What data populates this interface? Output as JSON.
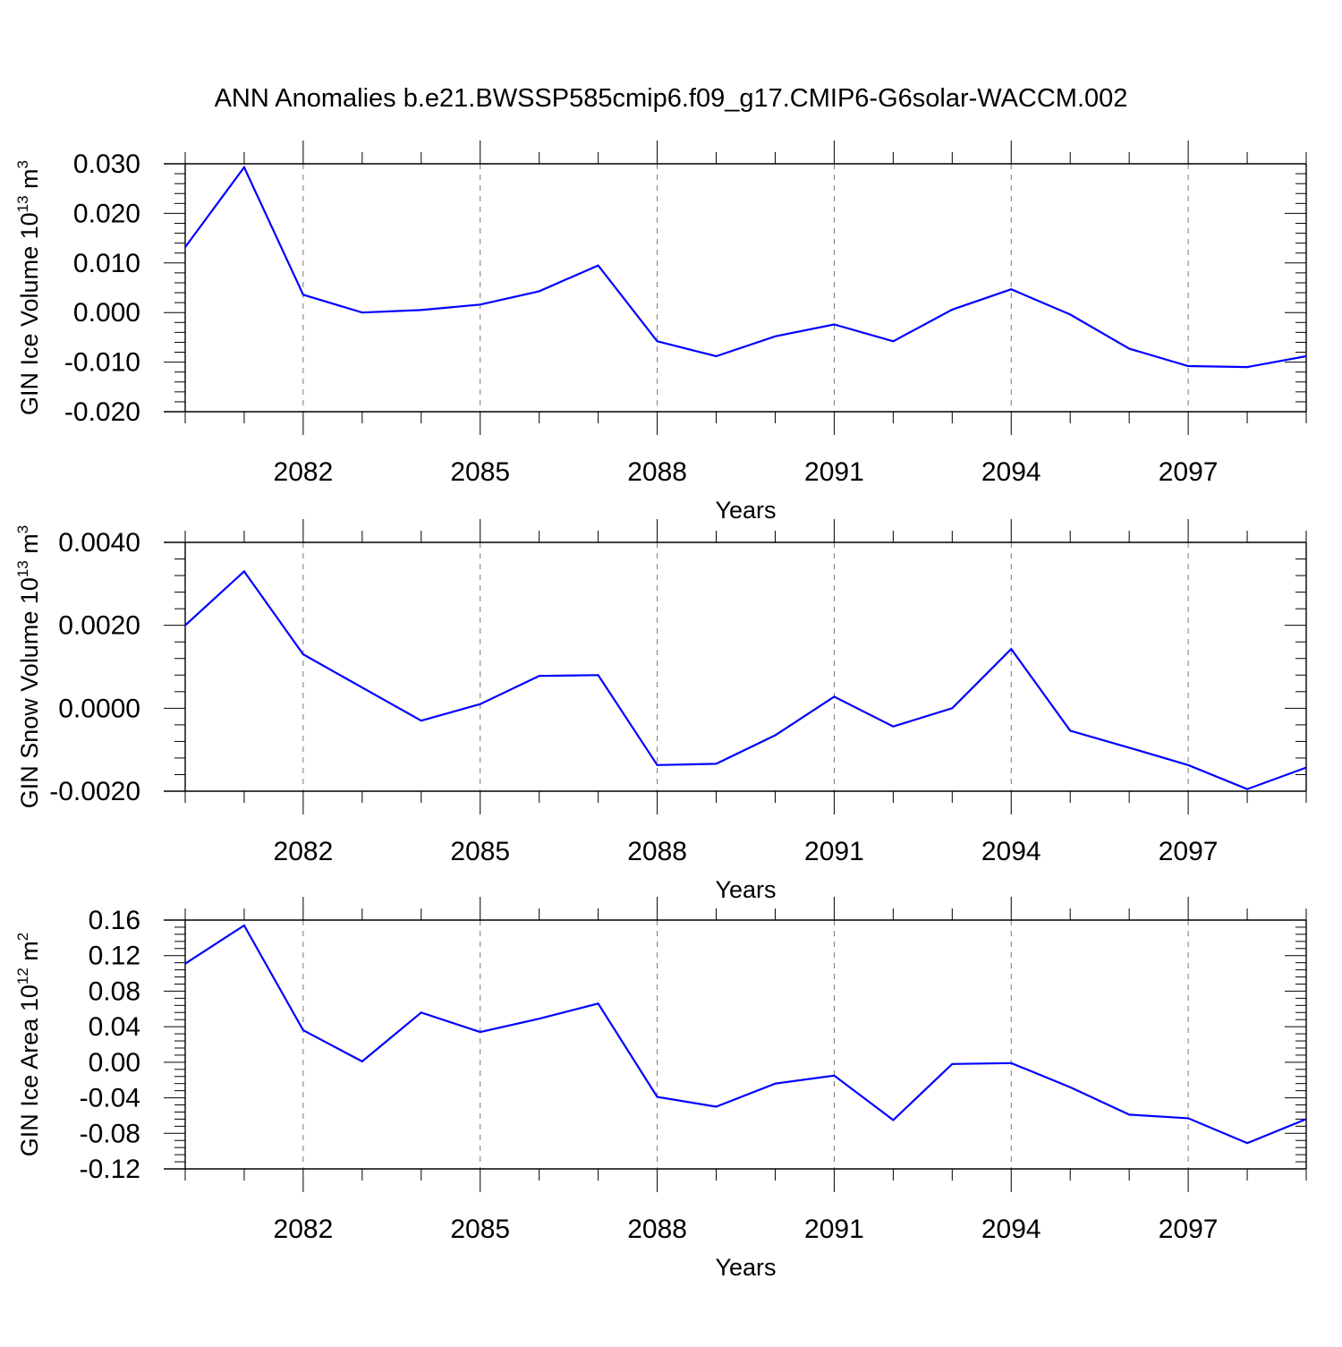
{
  "figure_title": "ANN Anomalies b.e21.BWSSP585cmip6.f09_g17.CMIP6-G6solar-WACCM.002",
  "colors": {
    "series": "#0000ff",
    "frame": "#000000",
    "grid": "#7a7a7a"
  },
  "chart_data": [
    {
      "type": "line",
      "title": "",
      "ylabel": {
        "text": "GIN Ice Volume 10",
        "exp": "13",
        "unit": " m",
        "unit_exp": "3"
      },
      "xlabel": "Years",
      "xlim": [
        2080,
        2099
      ],
      "ylim": [
        -0.02,
        0.03
      ],
      "grid": "vertical dashed at major x ticks",
      "yticks": [
        0.03,
        0.02,
        0.01,
        0.0,
        -0.01,
        -0.02
      ],
      "ytick_labels": [
        "0.030",
        "0.020",
        "0.010",
        "0.000",
        "-0.010",
        "-0.020"
      ],
      "xticks": [
        2082,
        2085,
        2088,
        2091,
        2094,
        2097
      ],
      "xtick_labels": [
        "2082",
        "2085",
        "2088",
        "2091",
        "2094",
        "2097"
      ],
      "x": [
        2080,
        2081,
        2082,
        2083,
        2084,
        2085,
        2086,
        2087,
        2088,
        2089,
        2090,
        2091,
        2092,
        2093,
        2094,
        2095,
        2096,
        2097,
        2098,
        2099
      ],
      "series": [
        {
          "values": [
            0.0132,
            0.0293,
            0.0036,
            0.0,
            0.0005,
            0.0016,
            0.0043,
            0.0095,
            -0.0058,
            -0.0088,
            -0.0048,
            -0.0024,
            -0.0058,
            0.0006,
            0.0047,
            -0.0004,
            -0.0073,
            -0.0108,
            -0.011,
            -0.0088
          ]
        }
      ]
    },
    {
      "type": "line",
      "title": "",
      "ylabel": {
        "text": "GIN Snow Volume 10",
        "exp": "13",
        "unit": " m",
        "unit_exp": "3"
      },
      "xlabel": "Years",
      "xlim": [
        2080,
        2099
      ],
      "ylim": [
        -0.002,
        0.004
      ],
      "grid": "vertical dashed at major x ticks",
      "yticks": [
        0.004,
        0.002,
        0.0,
        -0.002
      ],
      "ytick_labels": [
        "0.0040",
        "0.0020",
        "0.0000",
        "-0.0020"
      ],
      "xticks": [
        2082,
        2085,
        2088,
        2091,
        2094,
        2097
      ],
      "xtick_labels": [
        "2082",
        "2085",
        "2088",
        "2091",
        "2094",
        "2097"
      ],
      "x": [
        2080,
        2081,
        2082,
        2083,
        2084,
        2085,
        2086,
        2087,
        2088,
        2089,
        2090,
        2091,
        2092,
        2093,
        2094,
        2095,
        2096,
        2097,
        2098,
        2099
      ],
      "series": [
        {
          "values": [
            0.002,
            0.0033,
            0.0013,
            0.0005,
            -0.0003,
            0.0001,
            0.00078,
            0.0008,
            -0.00137,
            -0.00134,
            -0.00065,
            0.00028,
            -0.00044,
            0.0,
            0.00143,
            -0.00054,
            -0.00095,
            -0.00137,
            -0.00195,
            -0.00143
          ]
        }
      ]
    },
    {
      "type": "line",
      "title": "",
      "ylabel": {
        "text": "GIN Ice Area 10",
        "exp": "12",
        "unit": " m",
        "unit_exp": "2"
      },
      "xlabel": "Years",
      "xlim": [
        2080,
        2099
      ],
      "ylim": [
        -0.12,
        0.16
      ],
      "grid": "vertical dashed at major x ticks",
      "yticks": [
        0.16,
        0.12,
        0.08,
        0.04,
        0.0,
        -0.04,
        -0.08,
        -0.12
      ],
      "ytick_labels": [
        "0.16",
        "0.12",
        "0.08",
        "0.04",
        "0.00",
        "-0.04",
        "-0.08",
        "-0.12"
      ],
      "xticks": [
        2082,
        2085,
        2088,
        2091,
        2094,
        2097
      ],
      "xtick_labels": [
        "2082",
        "2085",
        "2088",
        "2091",
        "2094",
        "2097"
      ],
      "x": [
        2080,
        2081,
        2082,
        2083,
        2084,
        2085,
        2086,
        2087,
        2088,
        2089,
        2090,
        2091,
        2092,
        2093,
        2094,
        2095,
        2096,
        2097,
        2098,
        2099
      ],
      "series": [
        {
          "values": [
            0.111,
            0.154,
            0.036,
            0.001,
            0.056,
            0.034,
            0.049,
            0.066,
            -0.039,
            -0.05,
            -0.024,
            -0.015,
            -0.065,
            -0.002,
            -0.001,
            -0.028,
            -0.059,
            -0.063,
            -0.091,
            -0.064
          ]
        }
      ]
    }
  ]
}
